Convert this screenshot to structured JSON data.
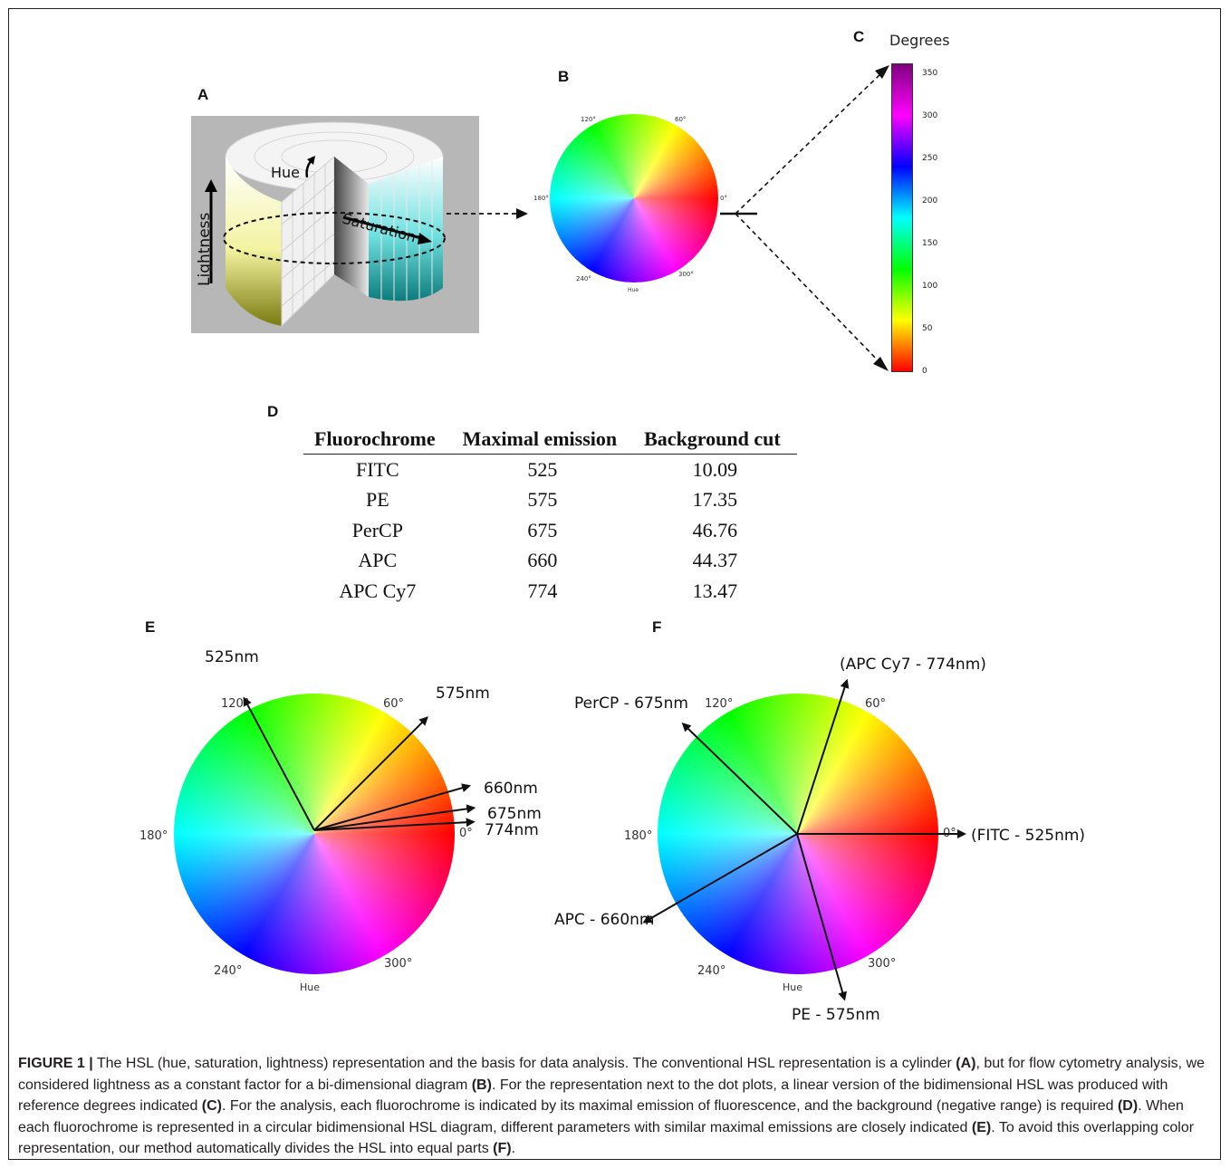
{
  "panels": {
    "a": "A",
    "b": "B",
    "c": "C",
    "d": "D",
    "e": "E",
    "f": "F"
  },
  "cylinder": {
    "hue_label": "Hue",
    "saturation_label": "Saturation",
    "lightness_label": "Lightness"
  },
  "small_wheel": {
    "angle_labels": [
      "60°",
      "120°",
      "180°",
      "0°",
      "240°",
      "300°"
    ],
    "hue_label": "Hue"
  },
  "colorbar": {
    "title": "Degrees",
    "ticks": [
      "350",
      "300",
      "250",
      "200",
      "150",
      "100",
      "50",
      "0"
    ],
    "colors": [
      "#ff0000",
      "#ffff00",
      "#00ff00",
      "#00ffff",
      "#0000ff",
      "#ff00ff",
      "#800080"
    ]
  },
  "table": {
    "headers": [
      "Fluorochrome",
      "Maximal emission",
      "Background cut"
    ],
    "rows": [
      [
        "FITC",
        "525",
        "10.09"
      ],
      [
        "PE",
        "575",
        "17.35"
      ],
      [
        "PerCP",
        "675",
        "46.76"
      ],
      [
        "APC",
        "660",
        "44.37"
      ],
      [
        "APC Cy7",
        "774",
        "13.47"
      ]
    ]
  },
  "wheel_e": {
    "angle_labels": [
      "60°",
      "120°",
      "180°",
      "0°",
      "240°",
      "300°"
    ],
    "hue_label": "Hue",
    "arrows": [
      {
        "label": "525nm",
        "angle_deg": 118
      },
      {
        "label": "575nm",
        "angle_deg": 45
      },
      {
        "label": "660nm",
        "angle_deg": 16
      },
      {
        "label": "675nm",
        "angle_deg": 8
      },
      {
        "label": "774nm",
        "angle_deg": 3
      }
    ]
  },
  "wheel_f": {
    "angle_labels": [
      "60°",
      "120°",
      "180°",
      "0°",
      "240°",
      "300°"
    ],
    "hue_label": "Hue",
    "arrows": [
      {
        "label": "(FITC - 525nm)",
        "angle_deg": 0
      },
      {
        "label": "(APC Cy7 - 774nm)",
        "angle_deg": 72
      },
      {
        "label": "PerCP - 675nm",
        "angle_deg": 136
      },
      {
        "label": "APC - 660nm",
        "angle_deg": 210
      },
      {
        "label": "PE - 575nm",
        "angle_deg": 286
      }
    ]
  },
  "caption": {
    "figure_label": "FIGURE 1 |",
    "segments": [
      {
        "t": " The HSL (hue, saturation, lightness) representation and the basis for data analysis. The conventional HSL representation is a cylinder ",
        "b": false
      },
      {
        "t": "(A)",
        "b": true
      },
      {
        "t": ", but for flow cytometry analysis, we considered lightness as a constant factor for a bi-dimensional diagram ",
        "b": false
      },
      {
        "t": "(B)",
        "b": true
      },
      {
        "t": ". For the representation next to the dot plots, a linear version of the bidimensional HSL was produced with reference degrees indicated ",
        "b": false
      },
      {
        "t": "(C)",
        "b": true
      },
      {
        "t": ". For the analysis, each fluorochrome is indicated by its maximal emission of fluorescence, and the background (negative range) is required ",
        "b": false
      },
      {
        "t": "(D)",
        "b": true
      },
      {
        "t": ". When each fluorochrome is represented in a circular bidimensional HSL diagram, different parameters with similar maximal emissions are closely indicated ",
        "b": false
      },
      {
        "t": "(E)",
        "b": true
      },
      {
        "t": ". To avoid this overlapping color representation, our method automatically divides the HSL into equal parts ",
        "b": false
      },
      {
        "t": "(F)",
        "b": true
      },
      {
        "t": ".",
        "b": false
      }
    ]
  }
}
